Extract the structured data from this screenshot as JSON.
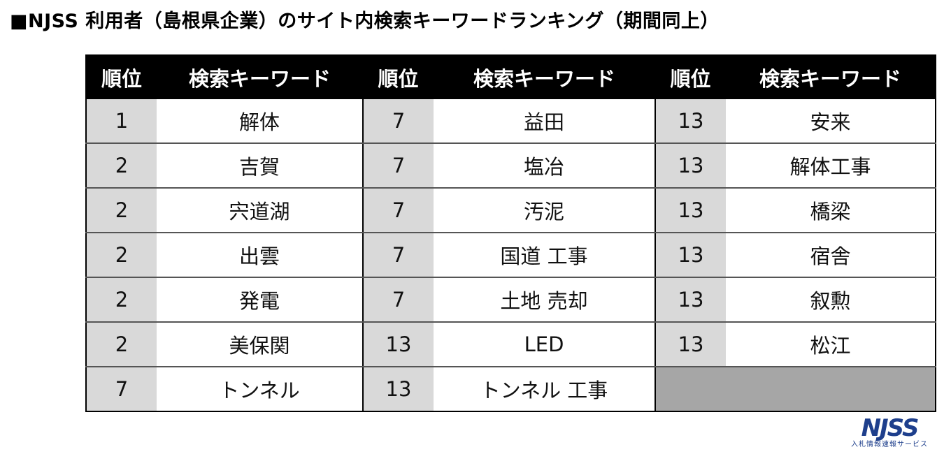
{
  "title": "■NJSS 利用者（島根県企業）のサイト内検索キーワードランキング（期間同上）",
  "table": {
    "headers": [
      "順位",
      "検索キーワード",
      "順位",
      "検索キーワード",
      "順位",
      "検索キーワード"
    ],
    "rows": [
      [
        "1",
        "解体",
        "7",
        "益田",
        "13",
        "安来"
      ],
      [
        "2",
        "吉賀",
        "7",
        "塩冶",
        "13",
        "解体工事"
      ],
      [
        "2",
        "宍道湖",
        "7",
        "汚泥",
        "13",
        "橋梁"
      ],
      [
        "2",
        "出雲",
        "7",
        "国道 工事",
        "13",
        "宿舎"
      ],
      [
        "2",
        "発電",
        "7",
        "土地 売却",
        "13",
        "叙勲"
      ],
      [
        "2",
        "美保関",
        "13",
        "LED",
        "13",
        "松江"
      ],
      [
        "7",
        "トンネル",
        "13",
        "トンネル 工事",
        "",
        ""
      ]
    ]
  },
  "logo": {
    "name": "NJSS",
    "tagline": "入札情報速報サービス"
  },
  "colors": {
    "header_bg": "#000000",
    "rank_bg": "#d9d9d9",
    "empty_bg": "#a6a6a6",
    "logo": "#1e3f8c"
  }
}
